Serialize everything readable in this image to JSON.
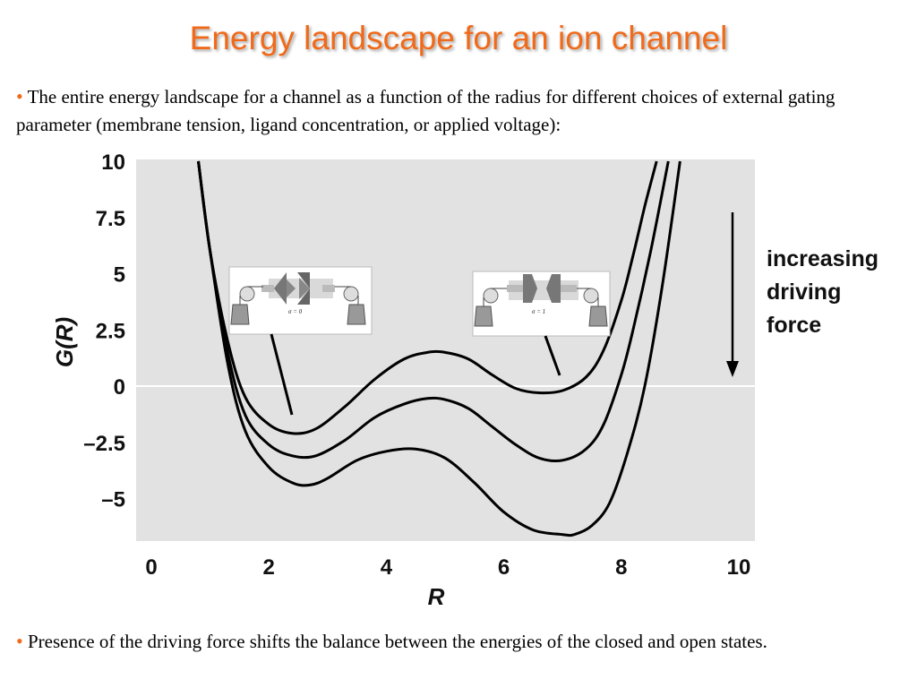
{
  "slide": {
    "title": "Energy landscape for an ion channel",
    "bullets": [
      "The entire energy landscape for a channel as a function of the radius for different choices of external gating parameter (membrane tension, ligand concentration, or applied voltage):",
      "Presence of the driving force shifts the balance between the energies of the closed and open states."
    ]
  },
  "colors": {
    "title": "#f06a1a",
    "bullet": "#f06a1a",
    "plot_bg": "#e2e2e2",
    "curve": "#000000"
  },
  "chart_data": {
    "type": "line",
    "title": "",
    "xlabel": "R",
    "ylabel": "G(R)",
    "xlim": [
      0,
      10.5
    ],
    "ylim": [
      -6.8,
      10
    ],
    "xticks": [
      0,
      2,
      4,
      6,
      8,
      10
    ],
    "xtick_labels": [
      "0",
      "2",
      "4",
      "6",
      "8",
      "10"
    ],
    "yticks": [
      10,
      7.5,
      5,
      2.5,
      0,
      -2.5,
      -5
    ],
    "ytick_labels": [
      "10",
      "7.5",
      "5",
      "2.5",
      "0",
      "–2.5",
      "–5"
    ],
    "zero_line": true,
    "series": [
      {
        "x": [
          0.8,
          1.0,
          1.3,
          1.6,
          2.0,
          2.4,
          2.8,
          3.3,
          3.8,
          4.3,
          4.7,
          5.0,
          5.4,
          5.8,
          6.2,
          6.6,
          7.0,
          7.4,
          7.7,
          8.0,
          8.2,
          8.4,
          8.6
        ],
        "y": [
          10,
          6.0,
          2.0,
          -0.5,
          -1.7,
          -2.1,
          -1.9,
          -0.9,
          0.3,
          1.2,
          1.5,
          1.5,
          1.2,
          0.5,
          -0.1,
          -0.3,
          -0.2,
          0.4,
          1.6,
          3.8,
          5.8,
          8.0,
          10
        ]
      },
      {
        "x": [
          0.8,
          1.0,
          1.3,
          1.6,
          2.0,
          2.4,
          2.8,
          3.3,
          3.8,
          4.3,
          4.7,
          5.0,
          5.4,
          5.8,
          6.2,
          6.6,
          7.0,
          7.4,
          7.7,
          8.0,
          8.2,
          8.5,
          8.8
        ],
        "y": [
          10,
          6.0,
          1.5,
          -1.3,
          -2.6,
          -3.1,
          -3.1,
          -2.4,
          -1.4,
          -0.8,
          -0.55,
          -0.6,
          -1.0,
          -1.8,
          -2.6,
          -3.2,
          -3.3,
          -2.8,
          -1.7,
          0.5,
          2.5,
          6.0,
          10
        ]
      },
      {
        "x": [
          0.8,
          1.0,
          1.3,
          1.6,
          2.0,
          2.4,
          2.7,
          3.0,
          3.5,
          4.0,
          4.5,
          5.0,
          5.5,
          6.0,
          6.5,
          7.0,
          7.2,
          7.5,
          7.8,
          8.1,
          8.4,
          8.7,
          9.0
        ],
        "y": [
          10,
          6.0,
          1.0,
          -2.0,
          -3.6,
          -4.3,
          -4.4,
          -4.1,
          -3.3,
          -2.9,
          -2.8,
          -3.2,
          -4.3,
          -5.6,
          -6.4,
          -6.6,
          -6.6,
          -6.2,
          -5.2,
          -3.0,
          0.0,
          4.5,
          10
        ]
      }
    ],
    "annotations": [
      {
        "text": "increasing driving force",
        "arrow": "down"
      },
      {
        "inset": "closed channel",
        "label": "σ = 0",
        "points_to": [
          2.4,
          -1.3
        ]
      },
      {
        "inset": "open channel",
        "label": "σ = 1",
        "points_to": [
          6.9,
          0.4
        ]
      }
    ]
  }
}
